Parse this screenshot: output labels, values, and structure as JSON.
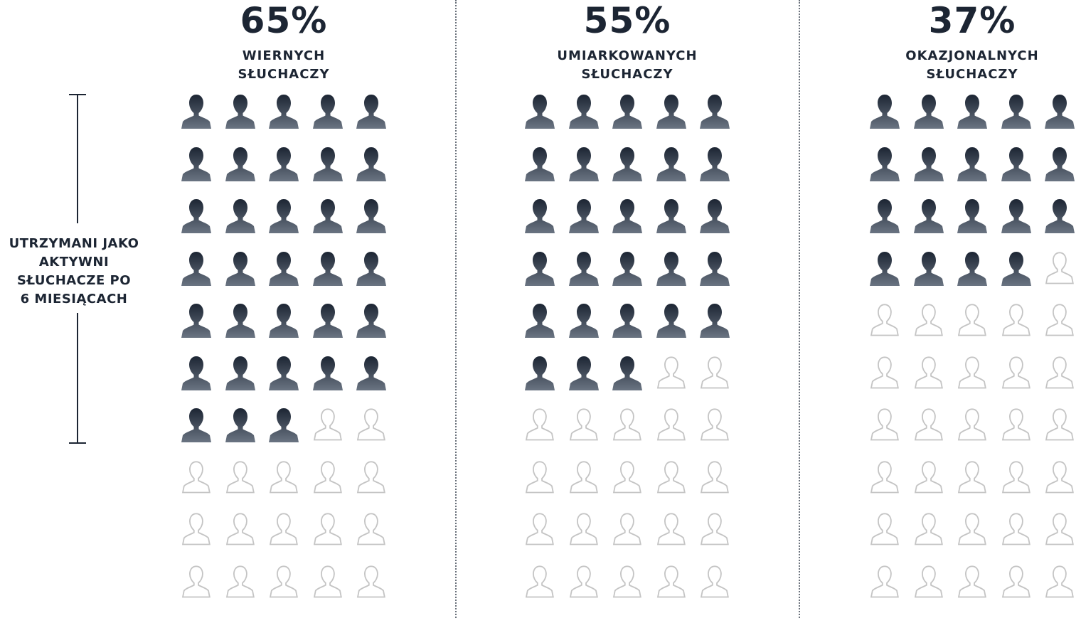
{
  "side_label": {
    "lines": [
      "UTRZYMANI JAKO",
      "AKTYWNI",
      "SŁUCHACZE PO",
      "6 MIESIĄCACH"
    ]
  },
  "colors": {
    "filled_top": "#1c2533",
    "filled_bottom": "#6a7482",
    "outline": "#c4c4c4",
    "text": "#1c2533"
  },
  "icons": {
    "filled": "person-silhouette-icon",
    "outline": "person-outline-icon",
    "per_group": 50,
    "columns": 5,
    "rows": 10
  },
  "chart_data": {
    "type": "pictogram",
    "series": [
      {
        "value_label": "65%",
        "label_lines": [
          "WIERNYCH",
          "SŁUCHACZY"
        ],
        "value": 65,
        "filled_icons": 33
      },
      {
        "value_label": "55%",
        "label_lines": [
          "UMIARKOWANYCH",
          "SŁUCHACZY"
        ],
        "value": 55,
        "filled_icons": 28
      },
      {
        "value_label": "37%",
        "label_lines": [
          "OKAZJONALNYCH",
          "SŁUCHACZY"
        ],
        "value": 37,
        "filled_icons": 19
      }
    ]
  }
}
